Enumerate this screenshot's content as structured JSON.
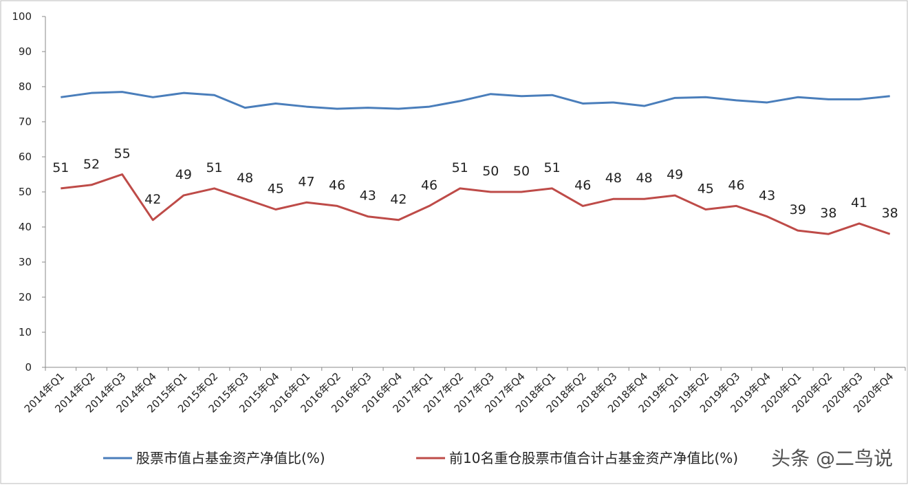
{
  "chart_data": {
    "type": "line",
    "categories": [
      "2014年Q1",
      "2014年Q2",
      "2014年Q3",
      "2014年Q4",
      "2015年Q1",
      "2015年Q2",
      "2015年Q3",
      "2015年Q4",
      "2016年Q1",
      "2016年Q2",
      "2016年Q3",
      "2016年Q4",
      "2017年Q1",
      "2017年Q2",
      "2017年Q3",
      "2017年Q4",
      "2018年Q1",
      "2018年Q2",
      "2018年Q3",
      "2018年Q4",
      "2019年Q1",
      "2019年Q2",
      "2019年Q3",
      "2019年Q4",
      "2020年Q1",
      "2020年Q2",
      "2020年Q3",
      "2020年Q4"
    ],
    "series": [
      {
        "name": "股票市值占基金资产净值比(%)",
        "color": "#4a7ebb",
        "values": [
          77,
          78.2,
          78.5,
          77,
          78.2,
          77.6,
          74,
          75.2,
          74.3,
          73.7,
          74,
          73.7,
          74.3,
          75.9,
          77.9,
          77.3,
          77.6,
          75.2,
          75.5,
          74.5,
          76.8,
          77,
          76.1,
          75.5,
          77,
          76.4,
          76.4,
          77.3
        ]
      },
      {
        "name": "前10名重仓股票市值合计占基金资产净值比(%)",
        "color": "#be4b48",
        "show_labels": true,
        "values": [
          51,
          52,
          55,
          42,
          49,
          51,
          48,
          45,
          47,
          46,
          43,
          42,
          46,
          51,
          50,
          50,
          51,
          46,
          48,
          48,
          49,
          45,
          46,
          43,
          39,
          38,
          41,
          38
        ]
      }
    ],
    "ylim": [
      0,
      100
    ],
    "yticks": [
      0,
      10,
      20,
      30,
      40,
      50,
      60,
      70,
      80,
      90,
      100
    ],
    "grid": false,
    "watermark": "头条 @二鸟说"
  }
}
